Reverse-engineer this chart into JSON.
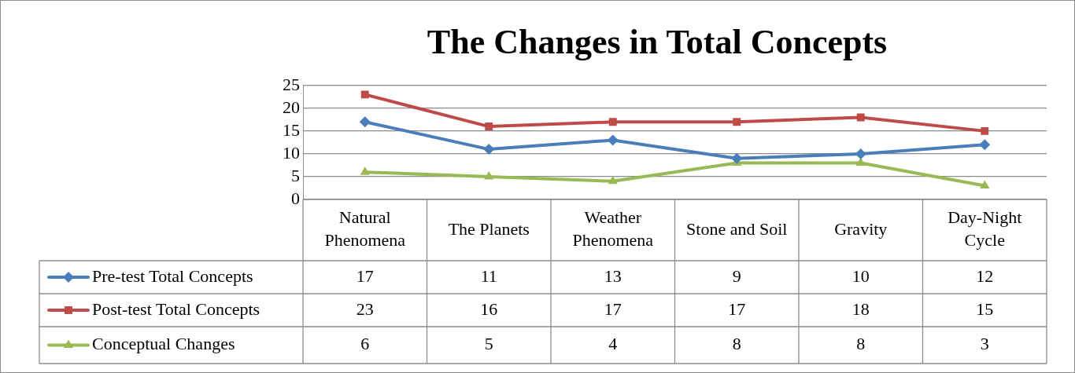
{
  "chart_data": {
    "type": "line",
    "title": "The Changes in Total Concepts",
    "categories": [
      "Natural Phenomena",
      "The Planets",
      "Weather Phenomena",
      "Stone and Soil",
      "Gravity",
      "Day-Night Cycle"
    ],
    "series": [
      {
        "name": "Pre-test Total Concepts",
        "color": "#4a7ebb",
        "marker": "diamond",
        "values": [
          17,
          11,
          13,
          9,
          10,
          12
        ]
      },
      {
        "name": "Post-test Total Concepts",
        "color": "#be4b48",
        "marker": "square",
        "values": [
          23,
          16,
          17,
          17,
          18,
          15
        ]
      },
      {
        "name": "Conceptual Changes",
        "color": "#98b954",
        "marker": "triangle",
        "values": [
          6,
          5,
          4,
          8,
          8,
          3
        ]
      }
    ],
    "ylim": [
      0,
      25
    ],
    "yticks": [
      0,
      5,
      10,
      15,
      20,
      25
    ],
    "grid": "y",
    "legend": "bottom",
    "data_labels": true
  }
}
